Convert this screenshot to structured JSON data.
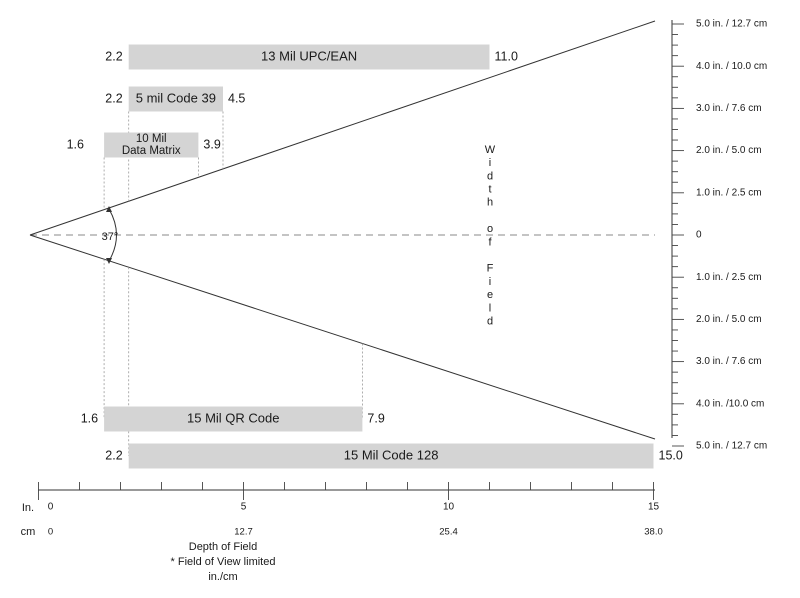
{
  "diagram": {
    "angle_label": "37°",
    "width_label": [
      "W",
      "i",
      "d",
      "t",
      "h",
      "",
      "o",
      "f",
      "",
      "F",
      "i",
      "e",
      "l",
      "d"
    ],
    "bars": [
      {
        "id": "upc",
        "label_lines": [
          "13 Mil UPC/EAN"
        ],
        "start": 2.2,
        "end": 11.0,
        "start_label": "2.2",
        "end_label": "11.0"
      },
      {
        "id": "code39",
        "label_lines": [
          "5 mil Code 39"
        ],
        "start": 2.2,
        "end": 4.5,
        "start_label": "2.2",
        "end_label": "4.5"
      },
      {
        "id": "datamatrix",
        "label_lines": [
          "10 Mil",
          "Data Matrix"
        ],
        "start": 1.6,
        "end": 3.9,
        "start_label": "1.6",
        "end_label": "3.9"
      },
      {
        "id": "qr",
        "label_lines": [
          "15 Mil QR Code"
        ],
        "start": 1.6,
        "end": 7.9,
        "start_label": "1.6",
        "end_label": "7.9"
      },
      {
        "id": "code128",
        "label_lines": [
          "15 Mil Code 128"
        ],
        "start": 2.2,
        "end": 15.0,
        "start_label": "2.2",
        "end_label": "15.0"
      }
    ],
    "right_scale": [
      {
        "w": 5,
        "label": "5.0 in. / 12.7 cm"
      },
      {
        "w": 4,
        "label": "4.0 in. / 10.0 cm"
      },
      {
        "w": 3,
        "label": "3.0 in. / 7.6 cm"
      },
      {
        "w": 2,
        "label": "2.0 in. / 5.0 cm"
      },
      {
        "w": 1,
        "label": "1.0 in. / 2.5 cm"
      },
      {
        "w": 0,
        "label": "0"
      },
      {
        "w": -1,
        "label": "1.0 in. / 2.5 cm"
      },
      {
        "w": -2,
        "label": "2.0 in. / 5.0 cm"
      },
      {
        "w": -3,
        "label": "3.0 in. / 7.6 cm"
      },
      {
        "w": -4,
        "label": "4.0 in. /10.0 cm"
      },
      {
        "w": -5,
        "label": "5.0 in. / 12.7 cm"
      }
    ],
    "bottom_axis": {
      "in_label": "In.",
      "cm_label": "cm",
      "ticks": [
        {
          "value": 0,
          "in": "0",
          "cm": "0"
        },
        {
          "value": 5,
          "in": "5",
          "cm": "12.7"
        },
        {
          "value": 10,
          "in": "10",
          "cm": "25.4"
        },
        {
          "value": 15,
          "in": "15",
          "cm": "38.0"
        }
      ],
      "caption_lines": [
        "Depth of Field",
        "* Field of View limited",
        "in./cm"
      ]
    }
  }
}
